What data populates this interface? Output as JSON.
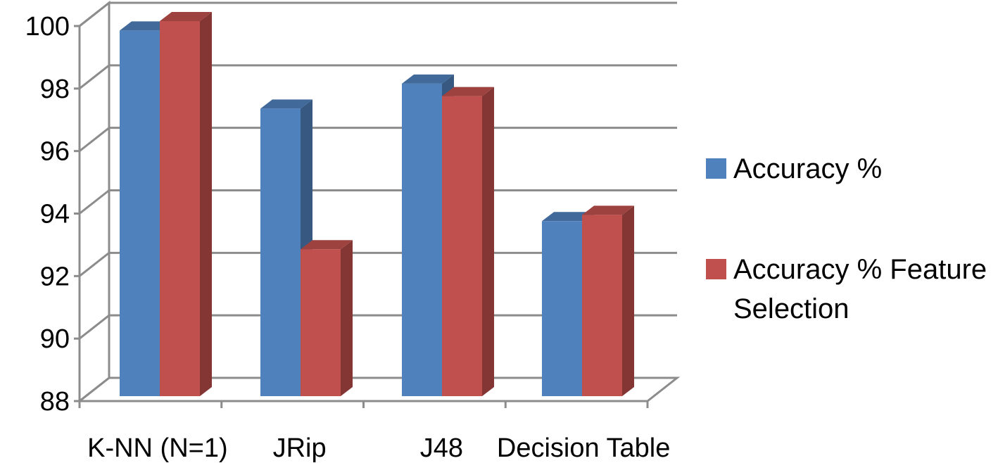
{
  "chart_data": {
    "type": "bar",
    "style": "3d-clustered-column",
    "title": "",
    "xlabel": "",
    "ylabel": "",
    "categories": [
      "K-NN (N=1)",
      "JRip",
      "J48",
      "Decision Table"
    ],
    "series": [
      {
        "name": "Accuracy %",
        "color": "#4F81BD",
        "values": [
          99.7,
          97.2,
          98.0,
          93.6
        ]
      },
      {
        "name": "Accuracy % Feature Selection",
        "color": "#C0504D",
        "values": [
          100.0,
          92.7,
          97.6,
          93.8
        ]
      }
    ],
    "ylim": [
      88,
      100
    ],
    "yticks": [
      88,
      90,
      92,
      94,
      96,
      98,
      100
    ],
    "grid": true,
    "legend": "right"
  }
}
